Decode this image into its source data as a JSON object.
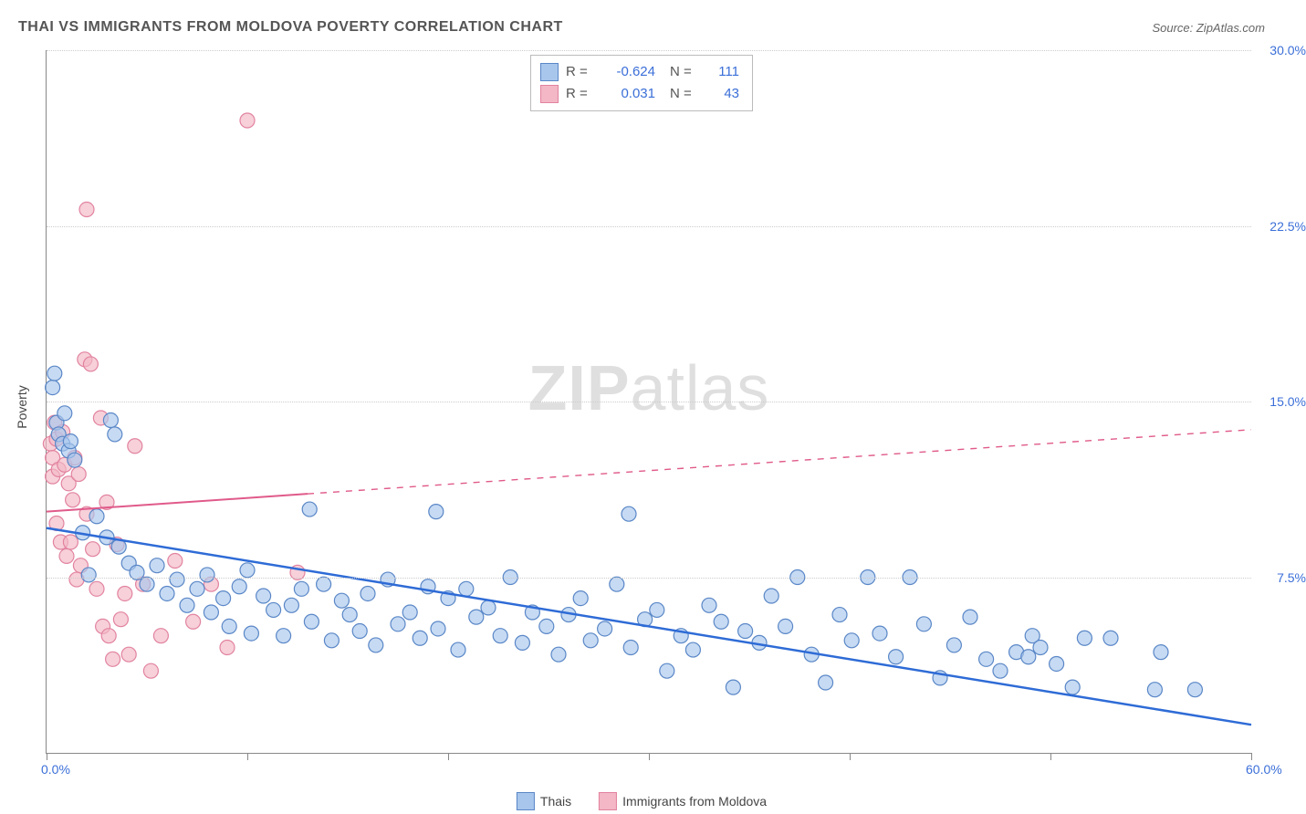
{
  "title_text": "THAI VS IMMIGRANTS FROM MOLDOVA POVERTY CORRELATION CHART",
  "source_label": "Source: ",
  "source_link": "ZipAtlas.com",
  "watermark_a": "ZIP",
  "watermark_b": "atlas",
  "y_axis_title": "Poverty",
  "chart": {
    "type": "scatter",
    "background": "#ffffff",
    "grid_color": "#cccccc",
    "axis_color": "#888888",
    "text_color": "#555555",
    "value_color": "#3b6fd8",
    "xlim": [
      0,
      60
    ],
    "ylim": [
      0,
      30
    ],
    "x_ticks": [
      0,
      10,
      20,
      30,
      40,
      50,
      60
    ],
    "x_tick_labels": {
      "0": "0.0%",
      "60": "60.0%"
    },
    "y_ticks": [
      7.5,
      15.0,
      22.5,
      30.0
    ],
    "y_tick_labels": [
      "7.5%",
      "15.0%",
      "22.5%",
      "30.0%"
    ],
    "series": [
      {
        "name": "Thais",
        "fill": "#a8c6ec",
        "stroke": "#5a87c7",
        "fill_opacity": 0.65,
        "marker_r": 8,
        "R": "-0.624",
        "N": "111",
        "trend": {
          "x1": 0,
          "y1": 9.6,
          "x2": 60,
          "y2": 1.2,
          "solid_until": 60,
          "color": "#2e6bd6",
          "width": 2.5
        },
        "points": [
          [
            0.3,
            15.6
          ],
          [
            0.4,
            16.2
          ],
          [
            0.5,
            14.1
          ],
          [
            0.6,
            13.6
          ],
          [
            0.8,
            13.2
          ],
          [
            0.9,
            14.5
          ],
          [
            1.1,
            12.9
          ],
          [
            1.2,
            13.3
          ],
          [
            1.4,
            12.5
          ],
          [
            3.2,
            14.2
          ],
          [
            3.4,
            13.6
          ],
          [
            1.8,
            9.4
          ],
          [
            2.1,
            7.6
          ],
          [
            2.5,
            10.1
          ],
          [
            3.0,
            9.2
          ],
          [
            3.6,
            8.8
          ],
          [
            4.1,
            8.1
          ],
          [
            4.5,
            7.7
          ],
          [
            5.0,
            7.2
          ],
          [
            5.5,
            8.0
          ],
          [
            6.0,
            6.8
          ],
          [
            6.5,
            7.4
          ],
          [
            7.0,
            6.3
          ],
          [
            7.5,
            7.0
          ],
          [
            8.0,
            7.6
          ],
          [
            8.2,
            6.0
          ],
          [
            8.8,
            6.6
          ],
          [
            9.1,
            5.4
          ],
          [
            9.6,
            7.1
          ],
          [
            10.0,
            7.8
          ],
          [
            10.2,
            5.1
          ],
          [
            10.8,
            6.7
          ],
          [
            11.3,
            6.1
          ],
          [
            11.8,
            5.0
          ],
          [
            12.2,
            6.3
          ],
          [
            12.7,
            7.0
          ],
          [
            13.1,
            10.4
          ],
          [
            13.2,
            5.6
          ],
          [
            13.8,
            7.2
          ],
          [
            14.2,
            4.8
          ],
          [
            14.7,
            6.5
          ],
          [
            15.1,
            5.9
          ],
          [
            15.6,
            5.2
          ],
          [
            16.0,
            6.8
          ],
          [
            16.4,
            4.6
          ],
          [
            17.0,
            7.4
          ],
          [
            17.5,
            5.5
          ],
          [
            18.1,
            6.0
          ],
          [
            18.6,
            4.9
          ],
          [
            19.0,
            7.1
          ],
          [
            19.4,
            10.3
          ],
          [
            19.5,
            5.3
          ],
          [
            20.0,
            6.6
          ],
          [
            20.5,
            4.4
          ],
          [
            20.9,
            7.0
          ],
          [
            21.4,
            5.8
          ],
          [
            22.0,
            6.2
          ],
          [
            22.6,
            5.0
          ],
          [
            23.1,
            7.5
          ],
          [
            23.7,
            4.7
          ],
          [
            24.2,
            6.0
          ],
          [
            24.9,
            5.4
          ],
          [
            25.5,
            4.2
          ],
          [
            26.0,
            5.9
          ],
          [
            26.6,
            6.6
          ],
          [
            27.1,
            4.8
          ],
          [
            27.8,
            5.3
          ],
          [
            28.4,
            7.2
          ],
          [
            29.0,
            10.2
          ],
          [
            29.1,
            4.5
          ],
          [
            29.8,
            5.7
          ],
          [
            30.4,
            6.1
          ],
          [
            30.9,
            3.5
          ],
          [
            31.6,
            5.0
          ],
          [
            32.2,
            4.4
          ],
          [
            33.0,
            6.3
          ],
          [
            33.6,
            5.6
          ],
          [
            34.2,
            2.8
          ],
          [
            34.8,
            5.2
          ],
          [
            35.5,
            4.7
          ],
          [
            36.1,
            6.7
          ],
          [
            36.8,
            5.4
          ],
          [
            37.4,
            7.5
          ],
          [
            38.1,
            4.2
          ],
          [
            38.8,
            3.0
          ],
          [
            39.5,
            5.9
          ],
          [
            40.1,
            4.8
          ],
          [
            40.9,
            7.5
          ],
          [
            41.5,
            5.1
          ],
          [
            42.3,
            4.1
          ],
          [
            43.0,
            7.5
          ],
          [
            43.7,
            5.5
          ],
          [
            44.5,
            3.2
          ],
          [
            45.2,
            4.6
          ],
          [
            46.0,
            5.8
          ],
          [
            46.8,
            4.0
          ],
          [
            47.5,
            3.5
          ],
          [
            48.3,
            4.3
          ],
          [
            48.9,
            4.1
          ],
          [
            49.1,
            5.0
          ],
          [
            49.5,
            4.5
          ],
          [
            50.3,
            3.8
          ],
          [
            51.1,
            2.8
          ],
          [
            51.7,
            4.9
          ],
          [
            53.0,
            4.9
          ],
          [
            55.2,
            2.7
          ],
          [
            55.5,
            4.3
          ],
          [
            57.2,
            2.7
          ]
        ]
      },
      {
        "name": "Immigrants from Moldova",
        "fill": "#f3b7c5",
        "stroke": "#e283a0",
        "fill_opacity": 0.65,
        "marker_r": 8,
        "R": "0.031",
        "N": "43",
        "trend": {
          "x1": 0,
          "y1": 10.3,
          "x2": 60,
          "y2": 13.8,
          "solid_until": 13,
          "color": "#e05a8a",
          "width": 2.0
        },
        "points": [
          [
            0.2,
            13.2
          ],
          [
            0.3,
            12.6
          ],
          [
            0.3,
            11.8
          ],
          [
            0.4,
            14.1
          ],
          [
            0.5,
            13.4
          ],
          [
            0.5,
            9.8
          ],
          [
            0.6,
            12.1
          ],
          [
            0.7,
            9.0
          ],
          [
            0.8,
            13.7
          ],
          [
            0.9,
            12.3
          ],
          [
            1.0,
            8.4
          ],
          [
            1.1,
            11.5
          ],
          [
            1.2,
            9.0
          ],
          [
            1.3,
            10.8
          ],
          [
            1.4,
            12.6
          ],
          [
            1.5,
            7.4
          ],
          [
            1.6,
            11.9
          ],
          [
            1.7,
            8.0
          ],
          [
            1.9,
            16.8
          ],
          [
            2.0,
            10.2
          ],
          [
            2.2,
            16.6
          ],
          [
            2.3,
            8.7
          ],
          [
            2.5,
            7.0
          ],
          [
            2.7,
            14.3
          ],
          [
            2.8,
            5.4
          ],
          [
            2.0,
            23.2
          ],
          [
            3.0,
            10.7
          ],
          [
            3.1,
            5.0
          ],
          [
            3.3,
            4.0
          ],
          [
            3.5,
            8.9
          ],
          [
            3.7,
            5.7
          ],
          [
            3.9,
            6.8
          ],
          [
            4.1,
            4.2
          ],
          [
            4.4,
            13.1
          ],
          [
            4.8,
            7.2
          ],
          [
            5.2,
            3.5
          ],
          [
            5.7,
            5.0
          ],
          [
            6.4,
            8.2
          ],
          [
            7.3,
            5.6
          ],
          [
            8.2,
            7.2
          ],
          [
            9.0,
            4.5
          ],
          [
            10.0,
            27.0
          ],
          [
            12.5,
            7.7
          ]
        ]
      }
    ],
    "bottom_legend": [
      {
        "label": "Thais",
        "fill": "#a8c6ec",
        "stroke": "#5a87c7"
      },
      {
        "label": "Immigrants from Moldova",
        "fill": "#f3b7c5",
        "stroke": "#e283a0"
      }
    ]
  }
}
